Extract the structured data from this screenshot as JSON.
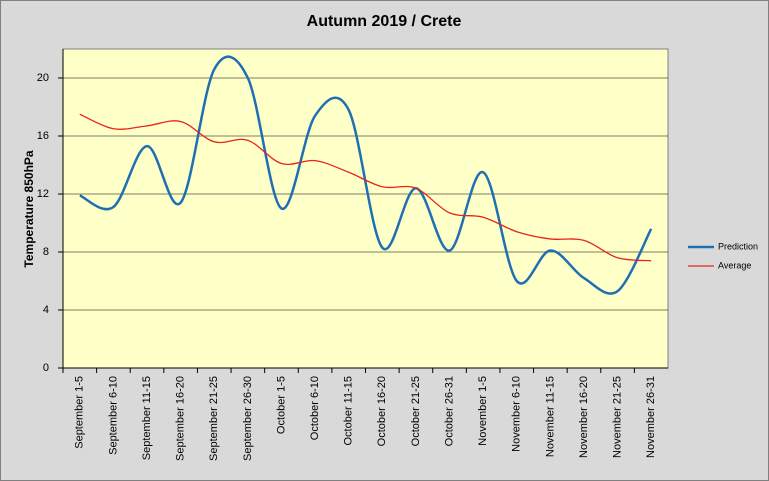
{
  "chart_data": {
    "type": "line",
    "title": "Autumn 2019 / Crete",
    "y_label": "Temperature 850hPa",
    "categories": [
      "September 1-5",
      "September 6-10",
      "September 11-15",
      "September 16-20",
      "September 21-25",
      "September 26-30",
      "October 1-5",
      "October 6-10",
      "October 11-15",
      "October 16-20",
      "October 21-25",
      "October 26-31",
      "November 1-5",
      "November 6-10",
      "November 11-15",
      "November 16-20",
      "November 21-25",
      "November 26-31"
    ],
    "series": [
      {
        "name": "Prediction",
        "color": "#1f6fb4",
        "values": [
          11.9,
          11.1,
          15.3,
          11.4,
          20.6,
          20.0,
          11.0,
          17.4,
          17.8,
          8.3,
          12.4,
          8.1,
          13.5,
          6.0,
          8.1,
          6.2,
          5.3,
          9.6
        ]
      },
      {
        "name": "Average",
        "color": "#e8241c",
        "values": [
          17.5,
          16.5,
          16.7,
          17.0,
          15.6,
          15.7,
          14.1,
          14.3,
          13.5,
          12.5,
          12.4,
          10.7,
          10.4,
          9.4,
          8.9,
          8.8,
          7.6,
          7.4
        ]
      }
    ],
    "ylim": [
      0,
      22
    ],
    "yticks": [
      0,
      4,
      8,
      12,
      16,
      20
    ],
    "grid": true,
    "plot_background": "#ffffc8",
    "smooth": true,
    "legend": "right"
  }
}
